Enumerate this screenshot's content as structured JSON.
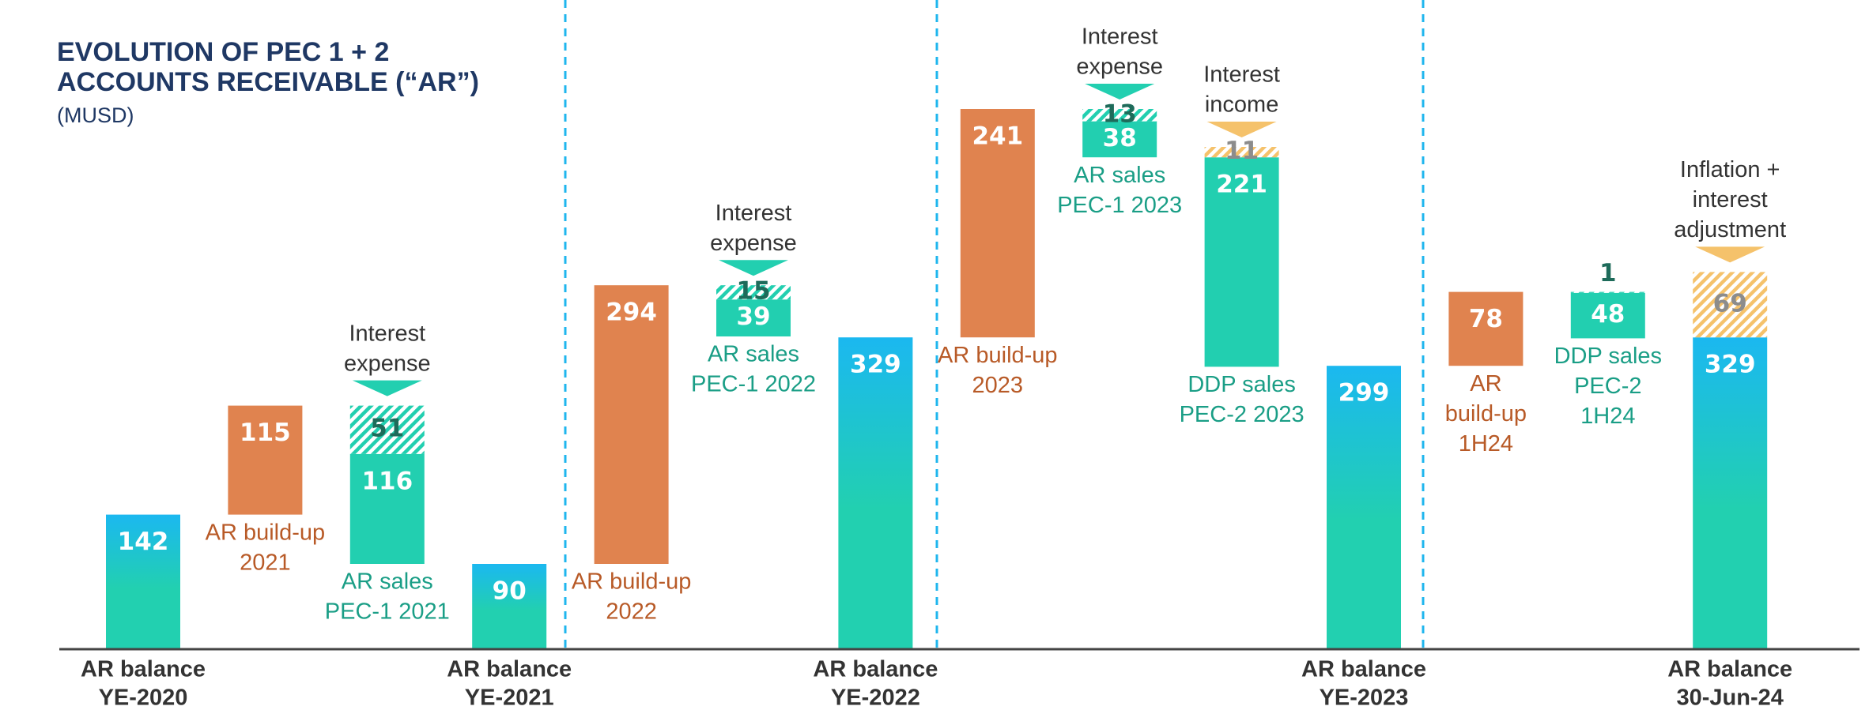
{
  "chart_data": {
    "type": "waterfall",
    "title": [
      "EVOLUTION OF PEC 1 + 2",
      "ACCOUNTS RECEIVABLE (“AR”)"
    ],
    "subtitle": "(MUSD)",
    "colors": {
      "increase": "#e0834f",
      "decrease": "#22cfb0",
      "total_top": "#1bb8f0",
      "total_bottom": "#22d0b0",
      "expense": "#22cfb0",
      "income": "#f5c26b",
      "increase_label": "#b85a27",
      "decrease_label": "#1a9e86",
      "expense_value": "#1e6b5a",
      "income_value": "#8c8c8c"
    },
    "steps": [
      {
        "kind": "total",
        "value": 142,
        "label": [
          "AR balance",
          "YE-2020"
        ]
      },
      {
        "kind": "increase",
        "value": 115,
        "label": [
          "AR build-up",
          "2021"
        ]
      },
      {
        "kind": "decrease",
        "value": 116,
        "label": [
          "AR sales",
          "PEC-1 2021"
        ],
        "extra": {
          "kind": "expense",
          "value": 51,
          "label": [
            "Interest",
            "expense"
          ]
        }
      },
      {
        "kind": "total",
        "value": 90,
        "label": [
          "AR balance",
          "YE-2021"
        ]
      },
      {
        "kind": "increase",
        "value": 294,
        "label": [
          "AR build-up",
          "2022"
        ]
      },
      {
        "kind": "decrease",
        "value": 39,
        "label": [
          "AR sales",
          "PEC-1 2022"
        ],
        "extra": {
          "kind": "expense",
          "value": 15,
          "label": [
            "Interest",
            "expense"
          ]
        }
      },
      {
        "kind": "total",
        "value": 329,
        "label": [
          "AR balance",
          "YE-2022"
        ]
      },
      {
        "kind": "increase",
        "value": 241,
        "label": [
          "AR build-up",
          "2023"
        ]
      },
      {
        "kind": "decrease",
        "value": 38,
        "label": [
          "AR sales",
          "PEC-1 2023"
        ],
        "extra": {
          "kind": "expense",
          "value": 13,
          "label": [
            "Interest",
            "expense"
          ]
        }
      },
      {
        "kind": "decrease",
        "value": 221,
        "label": [
          "DDP sales",
          "PEC-2 2023"
        ],
        "extra": {
          "kind": "income",
          "value": 11,
          "label": [
            "Interest",
            "income"
          ]
        }
      },
      {
        "kind": "total",
        "value": 299,
        "label": [
          "AR balance",
          "YE-2023"
        ]
      },
      {
        "kind": "increase",
        "value": 78,
        "label": [
          "AR",
          "build-up",
          "1H24"
        ]
      },
      {
        "kind": "decrease",
        "value": 48,
        "label": [
          "DDP sales",
          "PEC-2",
          "1H24"
        ],
        "extra": {
          "kind": "expense",
          "value": 1
        }
      },
      {
        "kind": "total",
        "value": 329,
        "label": [
          "AR balance",
          "30-Jun-24"
        ],
        "extra": {
          "kind": "income",
          "value": 69,
          "label": [
            "Inflation +",
            "interest",
            "adjustment"
          ]
        }
      }
    ]
  }
}
